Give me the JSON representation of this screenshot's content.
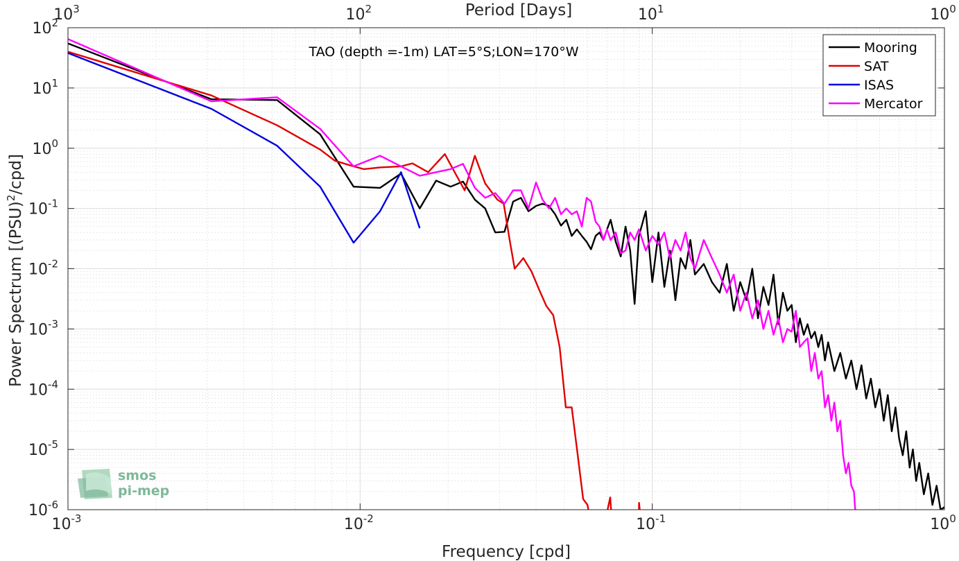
{
  "chart_data": {
    "type": "line",
    "title": "TAO (depth =-1m) LAT=5°S;LON=170°W",
    "xlabel": "Frequency [cpd]",
    "ylabel": "Power Spectrum [(PSU)",
    "ylabel_sup": "2",
    "ylabel_suffix": "/cpd]",
    "x2label": "Period [Days]",
    "xscale": "log",
    "yscale": "log",
    "xlim": [
      0.001,
      1
    ],
    "ylim": [
      1e-06,
      100
    ],
    "grid": true,
    "legend_position": "top-right",
    "x_ticks": [
      {
        "value": 0.001,
        "base": "10",
        "exp": "-3"
      },
      {
        "value": 0.01,
        "base": "10",
        "exp": "-2"
      },
      {
        "value": 0.1,
        "base": "10",
        "exp": "-1"
      },
      {
        "value": 1,
        "base": "10",
        "exp": "0"
      }
    ],
    "y_ticks": [
      {
        "value": 1e-06,
        "base": "10",
        "exp": "-6"
      },
      {
        "value": 1e-05,
        "base": "10",
        "exp": "-5"
      },
      {
        "value": 0.0001,
        "base": "10",
        "exp": "-4"
      },
      {
        "value": 0.001,
        "base": "10",
        "exp": "-3"
      },
      {
        "value": 0.01,
        "base": "10",
        "exp": "-2"
      },
      {
        "value": 0.1,
        "base": "10",
        "exp": "-1"
      },
      {
        "value": 1,
        "base": "10",
        "exp": "0"
      },
      {
        "value": 10,
        "base": "10",
        "exp": "1"
      },
      {
        "value": 100,
        "base": "10",
        "exp": "2"
      }
    ],
    "top_ticks": [
      {
        "value": 0.001,
        "base": "10",
        "exp": "3"
      },
      {
        "value": 0.01,
        "base": "10",
        "exp": "2"
      },
      {
        "value": 0.1,
        "base": "10",
        "exp": "1"
      },
      {
        "value": 1,
        "base": "10",
        "exp": "0"
      }
    ],
    "series": [
      {
        "name": "Mooring",
        "color": "#000000",
        "points": [
          [
            0.001,
            55
          ],
          [
            0.0031,
            6.5
          ],
          [
            0.0052,
            6.3
          ],
          [
            0.0073,
            1.7
          ],
          [
            0.0095,
            0.23
          ],
          [
            0.0117,
            0.22
          ],
          [
            0.0138,
            0.38
          ],
          [
            0.016,
            0.1
          ],
          [
            0.0182,
            0.29
          ],
          [
            0.0204,
            0.23
          ],
          [
            0.0225,
            0.28
          ],
          [
            0.0247,
            0.14
          ],
          [
            0.0268,
            0.1
          ],
          [
            0.029,
            0.04
          ],
          [
            0.0312,
            0.041
          ],
          [
            0.0334,
            0.13
          ],
          [
            0.0355,
            0.15
          ],
          [
            0.0377,
            0.09
          ],
          [
            0.04,
            0.11
          ],
          [
            0.0421,
            0.12
          ],
          [
            0.0443,
            0.11
          ],
          [
            0.0465,
            0.08
          ],
          [
            0.0487,
            0.052
          ],
          [
            0.0508,
            0.065
          ],
          [
            0.053,
            0.035
          ],
          [
            0.0552,
            0.045
          ],
          [
            0.0574,
            0.035
          ],
          [
            0.0596,
            0.028
          ],
          [
            0.0617,
            0.021
          ],
          [
            0.064,
            0.035
          ],
          [
            0.066,
            0.04
          ],
          [
            0.068,
            0.03
          ],
          [
            0.07,
            0.045
          ],
          [
            0.072,
            0.065
          ],
          [
            0.075,
            0.028
          ],
          [
            0.078,
            0.016
          ],
          [
            0.081,
            0.05
          ],
          [
            0.084,
            0.02
          ],
          [
            0.087,
            0.0026
          ],
          [
            0.09,
            0.035
          ],
          [
            0.095,
            0.09
          ],
          [
            0.1,
            0.006
          ],
          [
            0.105,
            0.04
          ],
          [
            0.11,
            0.005
          ],
          [
            0.115,
            0.02
          ],
          [
            0.12,
            0.003
          ],
          [
            0.125,
            0.015
          ],
          [
            0.13,
            0.01
          ],
          [
            0.135,
            0.03
          ],
          [
            0.14,
            0.008
          ],
          [
            0.15,
            0.012
          ],
          [
            0.16,
            0.006
          ],
          [
            0.17,
            0.004
          ],
          [
            0.18,
            0.012
          ],
          [
            0.19,
            0.002
          ],
          [
            0.2,
            0.006
          ],
          [
            0.21,
            0.003
          ],
          [
            0.22,
            0.01
          ],
          [
            0.23,
            0.0015
          ],
          [
            0.24,
            0.005
          ],
          [
            0.25,
            0.0025
          ],
          [
            0.26,
            0.008
          ],
          [
            0.27,
            0.0012
          ],
          [
            0.28,
            0.004
          ],
          [
            0.29,
            0.002
          ],
          [
            0.3,
            0.0025
          ],
          [
            0.31,
            0.0006
          ],
          [
            0.32,
            0.0015
          ],
          [
            0.33,
            0.0008
          ],
          [
            0.34,
            0.0012
          ],
          [
            0.35,
            0.0007
          ],
          [
            0.36,
            0.0009
          ],
          [
            0.37,
            0.0005
          ],
          [
            0.38,
            0.0008
          ],
          [
            0.39,
            0.0003
          ],
          [
            0.4,
            0.0006
          ],
          [
            0.42,
            0.0002
          ],
          [
            0.44,
            0.0004
          ],
          [
            0.46,
            0.00015
          ],
          [
            0.48,
            0.0003
          ],
          [
            0.5,
            0.0001
          ],
          [
            0.52,
            0.00025
          ],
          [
            0.54,
            7e-05
          ],
          [
            0.56,
            0.00015
          ],
          [
            0.58,
            5e-05
          ],
          [
            0.6,
            0.0001
          ],
          [
            0.62,
            3e-05
          ],
          [
            0.64,
            8e-05
          ],
          [
            0.66,
            2e-05
          ],
          [
            0.68,
            5e-05
          ],
          [
            0.7,
            1.5e-05
          ],
          [
            0.72,
            8e-06
          ],
          [
            0.74,
            2e-05
          ],
          [
            0.76,
            5e-06
          ],
          [
            0.78,
            1e-05
          ],
          [
            0.8,
            3e-06
          ],
          [
            0.82,
            6e-06
          ],
          [
            0.85,
            1.8e-06
          ],
          [
            0.88,
            4e-06
          ],
          [
            0.91,
            1.2e-06
          ],
          [
            0.94,
            2.5e-06
          ],
          [
            0.97,
            1e-06
          ],
          [
            1.0,
            1.1e-06
          ]
        ]
      },
      {
        "name": "SAT",
        "color": "#e00000",
        "points": [
          [
            0.001,
            40
          ],
          [
            0.0031,
            7.5
          ],
          [
            0.0052,
            2.4
          ],
          [
            0.0073,
            0.95
          ],
          [
            0.0082,
            0.62
          ],
          [
            0.0095,
            0.5
          ],
          [
            0.0103,
            0.45
          ],
          [
            0.0117,
            0.48
          ],
          [
            0.0138,
            0.5
          ],
          [
            0.0151,
            0.56
          ],
          [
            0.0171,
            0.4
          ],
          [
            0.0195,
            0.8
          ],
          [
            0.0214,
            0.35
          ],
          [
            0.0228,
            0.2
          ],
          [
            0.0247,
            0.75
          ],
          [
            0.0268,
            0.26
          ],
          [
            0.0295,
            0.14
          ],
          [
            0.031,
            0.12
          ],
          [
            0.0325,
            0.03
          ],
          [
            0.0338,
            0.01
          ],
          [
            0.0362,
            0.015
          ],
          [
            0.0386,
            0.009
          ],
          [
            0.041,
            0.0045
          ],
          [
            0.0434,
            0.0024
          ],
          [
            0.0458,
            0.0017
          ],
          [
            0.0482,
            0.0005
          ],
          [
            0.0506,
            5e-05
          ],
          [
            0.053,
            5e-05
          ],
          [
            0.0555,
            8.5e-06
          ],
          [
            0.058,
            1.5e-06
          ],
          [
            0.06,
            1.2e-06
          ],
          [
            0.061,
            8e-07
          ],
          [
            0.065,
            8e-07
          ],
          [
            0.07,
            9e-07
          ],
          [
            0.0718,
            1.6e-06
          ],
          [
            0.0725,
            8e-07
          ],
          [
            0.08,
            8e-07
          ],
          [
            0.09,
            8e-07
          ],
          [
            0.0901,
            1.3e-06
          ],
          [
            0.091,
            8e-07
          ]
        ]
      },
      {
        "name": "ISAS",
        "color": "#0000e0",
        "points": [
          [
            0.001,
            38
          ],
          [
            0.0031,
            4.5
          ],
          [
            0.0052,
            1.1
          ],
          [
            0.0073,
            0.23
          ],
          [
            0.0095,
            0.027
          ],
          [
            0.0117,
            0.09
          ],
          [
            0.0138,
            0.4
          ],
          [
            0.016,
            0.047
          ]
        ]
      },
      {
        "name": "Mercator",
        "color": "#ff00ff",
        "points": [
          [
            0.001,
            65
          ],
          [
            0.0031,
            6.0
          ],
          [
            0.0052,
            7.0
          ],
          [
            0.0073,
            2.1
          ],
          [
            0.0095,
            0.5
          ],
          [
            0.0117,
            0.75
          ],
          [
            0.0138,
            0.5
          ],
          [
            0.016,
            0.35
          ],
          [
            0.0182,
            0.4
          ],
          [
            0.0204,
            0.45
          ],
          [
            0.0225,
            0.55
          ],
          [
            0.0247,
            0.22
          ],
          [
            0.0268,
            0.15
          ],
          [
            0.029,
            0.18
          ],
          [
            0.0312,
            0.12
          ],
          [
            0.0334,
            0.2
          ],
          [
            0.0355,
            0.2
          ],
          [
            0.0377,
            0.1
          ],
          [
            0.04,
            0.27
          ],
          [
            0.0421,
            0.14
          ],
          [
            0.0443,
            0.1
          ],
          [
            0.0465,
            0.15
          ],
          [
            0.0487,
            0.08
          ],
          [
            0.0508,
            0.1
          ],
          [
            0.053,
            0.08
          ],
          [
            0.0552,
            0.09
          ],
          [
            0.0574,
            0.05
          ],
          [
            0.0596,
            0.15
          ],
          [
            0.0617,
            0.13
          ],
          [
            0.064,
            0.06
          ],
          [
            0.066,
            0.05
          ],
          [
            0.068,
            0.03
          ],
          [
            0.07,
            0.045
          ],
          [
            0.072,
            0.03
          ],
          [
            0.075,
            0.04
          ],
          [
            0.078,
            0.018
          ],
          [
            0.081,
            0.02
          ],
          [
            0.084,
            0.04
          ],
          [
            0.087,
            0.03
          ],
          [
            0.09,
            0.045
          ],
          [
            0.095,
            0.02
          ],
          [
            0.1,
            0.035
          ],
          [
            0.105,
            0.025
          ],
          [
            0.11,
            0.04
          ],
          [
            0.115,
            0.015
          ],
          [
            0.12,
            0.03
          ],
          [
            0.125,
            0.02
          ],
          [
            0.13,
            0.04
          ],
          [
            0.135,
            0.015
          ],
          [
            0.14,
            0.01
          ],
          [
            0.15,
            0.03
          ],
          [
            0.16,
            0.015
          ],
          [
            0.17,
            0.008
          ],
          [
            0.18,
            0.004
          ],
          [
            0.19,
            0.008
          ],
          [
            0.2,
            0.002
          ],
          [
            0.21,
            0.004
          ],
          [
            0.22,
            0.0015
          ],
          [
            0.23,
            0.003
          ],
          [
            0.24,
            0.001
          ],
          [
            0.25,
            0.002
          ],
          [
            0.26,
            0.0008
          ],
          [
            0.27,
            0.0015
          ],
          [
            0.28,
            0.0006
          ],
          [
            0.29,
            0.001
          ],
          [
            0.3,
            0.0009
          ],
          [
            0.31,
            0.002
          ],
          [
            0.32,
            0.0005
          ],
          [
            0.33,
            0.0006
          ],
          [
            0.34,
            0.0007
          ],
          [
            0.35,
            0.0002
          ],
          [
            0.36,
            0.0004
          ],
          [
            0.37,
            0.00015
          ],
          [
            0.38,
            0.0002
          ],
          [
            0.39,
            5e-05
          ],
          [
            0.4,
            8e-05
          ],
          [
            0.41,
            3e-05
          ],
          [
            0.42,
            6e-05
          ],
          [
            0.43,
            2e-05
          ],
          [
            0.44,
            3e-05
          ],
          [
            0.45,
            8e-06
          ],
          [
            0.46,
            4e-06
          ],
          [
            0.47,
            6e-06
          ],
          [
            0.48,
            2.5e-06
          ],
          [
            0.49,
            2e-06
          ],
          [
            0.495,
            1e-06
          ]
        ]
      }
    ]
  },
  "legend": {
    "items": [
      {
        "label": "Mooring",
        "color": "#000000"
      },
      {
        "label": "SAT",
        "color": "#e00000"
      },
      {
        "label": "ISAS",
        "color": "#0000e0"
      },
      {
        "label": "Mercator",
        "color": "#ff00ff"
      }
    ]
  },
  "logo": {
    "line1": "smos",
    "line2": "pi-mep",
    "color": "#7fb89a"
  }
}
